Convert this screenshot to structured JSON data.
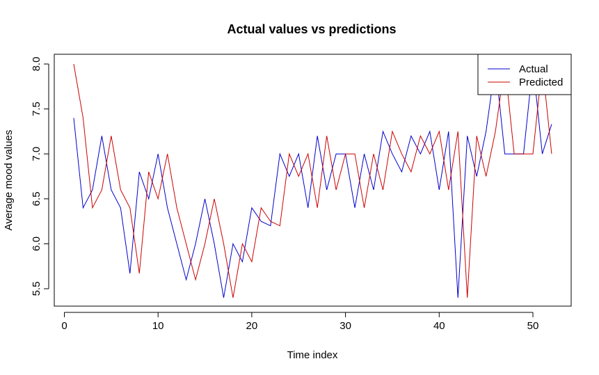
{
  "chart_data": {
    "type": "line",
    "title": "Actual values vs predictions",
    "xlabel": "Time index",
    "ylabel": "Average mood values",
    "xlim": [
      1,
      52
    ],
    "ylim": [
      5.4,
      8.0
    ],
    "x_ticks": [
      0,
      10,
      20,
      30,
      40,
      50
    ],
    "y_ticks": [
      5.5,
      6.0,
      6.5,
      7.0,
      7.5,
      8.0
    ],
    "x_tick_labels": [
      "0",
      "10",
      "20",
      "30",
      "40",
      "50"
    ],
    "y_tick_labels": [
      "5.5",
      "6.0",
      "6.5",
      "7.0",
      "7.5",
      "8.0"
    ],
    "grid": false,
    "legend_position": "top-right",
    "x": [
      1,
      2,
      3,
      4,
      5,
      6,
      7,
      8,
      9,
      10,
      11,
      12,
      13,
      14,
      15,
      16,
      17,
      18,
      19,
      20,
      21,
      22,
      23,
      24,
      25,
      26,
      27,
      28,
      29,
      30,
      31,
      32,
      33,
      34,
      35,
      36,
      37,
      38,
      39,
      40,
      41,
      42,
      43,
      44,
      45,
      46,
      47,
      48,
      49,
      50,
      51,
      52
    ],
    "series": [
      {
        "name": "Actual",
        "color": "#0000cc",
        "values": [
          7.4,
          6.4,
          6.6,
          7.2,
          6.6,
          6.4,
          5.67,
          6.8,
          6.5,
          7.0,
          6.4,
          6.0,
          5.6,
          6.0,
          6.5,
          6.0,
          5.4,
          6.0,
          5.8,
          6.4,
          6.25,
          6.2,
          7.0,
          6.75,
          7.0,
          6.4,
          7.2,
          6.6,
          7.0,
          7.0,
          6.4,
          7.0,
          6.6,
          7.25,
          7.0,
          6.8,
          7.2,
          7.0,
          7.25,
          6.6,
          7.25,
          5.4,
          7.2,
          6.75,
          7.25,
          8.0,
          7.0,
          7.0,
          7.0,
          8.0,
          7.0,
          7.33
        ]
      },
      {
        "name": "Predicted",
        "color": "#cc0000",
        "values": [
          8.0,
          7.4,
          6.4,
          6.6,
          7.2,
          6.6,
          6.4,
          5.67,
          6.8,
          6.5,
          7.0,
          6.4,
          6.0,
          5.6,
          6.0,
          6.5,
          6.0,
          5.4,
          6.0,
          5.8,
          6.4,
          6.25,
          6.2,
          7.0,
          6.75,
          7.0,
          6.4,
          7.2,
          6.6,
          7.0,
          7.0,
          6.4,
          7.0,
          6.6,
          7.25,
          7.0,
          6.8,
          7.2,
          7.0,
          7.25,
          6.6,
          7.25,
          5.4,
          7.2,
          6.75,
          7.25,
          8.0,
          7.0,
          7.0,
          7.0,
          8.0,
          7.0
        ]
      }
    ]
  }
}
